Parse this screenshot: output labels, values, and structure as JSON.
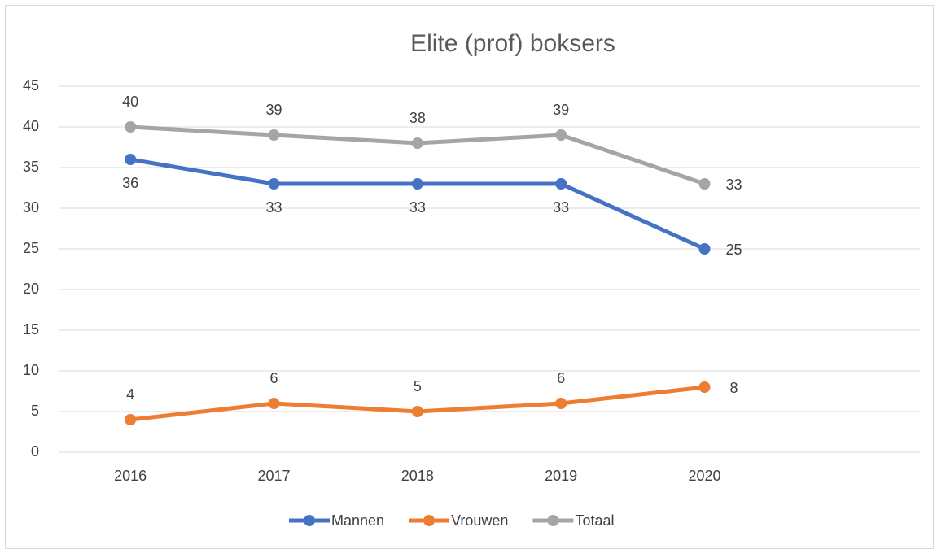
{
  "chart_data": {
    "type": "line",
    "title": "Elite (prof) boksers",
    "categories": [
      "2016",
      "2017",
      "2018",
      "2019",
      "2020",
      null
    ],
    "series": [
      {
        "name": "Mannen",
        "color": "#4472c4",
        "values": [
          36,
          33,
          33,
          33,
          25,
          null
        ]
      },
      {
        "name": "Vrouwen",
        "color": "#ed7d31",
        "values": [
          4,
          6,
          5,
          6,
          8,
          null
        ]
      },
      {
        "name": "Totaal",
        "color": "#a5a5a5",
        "values": [
          40,
          39,
          38,
          39,
          33,
          null
        ]
      }
    ],
    "ylim": [
      0,
      45
    ],
    "yticks": [
      0,
      5,
      10,
      15,
      20,
      25,
      30,
      35,
      40,
      45
    ],
    "grid": true,
    "legend": "bottom"
  }
}
